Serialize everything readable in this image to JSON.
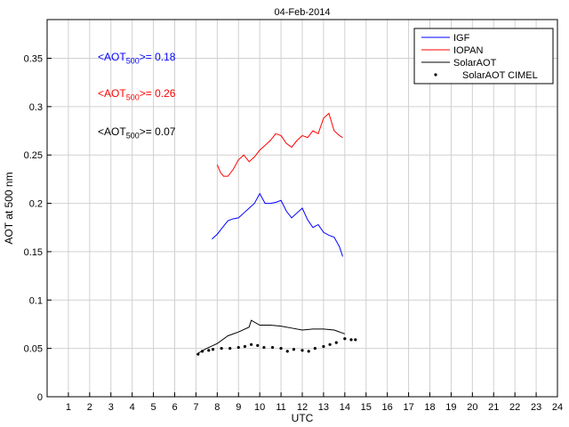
{
  "chart_data": {
    "type": "line",
    "title": "04-Feb-2014",
    "xlabel": "UTC",
    "ylabel": "AOT at 500 nm",
    "xlim": [
      0,
      24
    ],
    "ylim": [
      0,
      0.39
    ],
    "xticks": [
      1,
      2,
      3,
      4,
      5,
      6,
      7,
      8,
      9,
      10,
      11,
      12,
      13,
      14,
      15,
      16,
      17,
      18,
      19,
      20,
      21,
      22,
      23,
      24
    ],
    "yticks": [
      0,
      0.05,
      0.1,
      0.15,
      0.2,
      0.25,
      0.3,
      0.35
    ],
    "ytick_labels": [
      "0",
      "0.05",
      "0.1",
      "0.15",
      "0.2",
      "0.25",
      "0.3",
      "0.35"
    ],
    "grid": true,
    "legend_position": "top-right",
    "series": [
      {
        "name": "IGF",
        "color": "#0000ff",
        "style": "line",
        "x": [
          7.75,
          8.0,
          8.25,
          8.5,
          8.75,
          9.0,
          9.25,
          9.5,
          9.75,
          10.0,
          10.25,
          10.5,
          10.75,
          11.0,
          11.25,
          11.5,
          11.75,
          12.0,
          12.25,
          12.5,
          12.75,
          13.0,
          13.25,
          13.5,
          13.75,
          13.9
        ],
        "y": [
          0.163,
          0.168,
          0.175,
          0.182,
          0.184,
          0.185,
          0.19,
          0.195,
          0.2,
          0.21,
          0.2,
          0.2,
          0.201,
          0.203,
          0.192,
          0.185,
          0.19,
          0.195,
          0.183,
          0.175,
          0.178,
          0.17,
          0.167,
          0.165,
          0.155,
          0.145
        ]
      },
      {
        "name": "IOPAN",
        "color": "#ff0000",
        "style": "line",
        "x": [
          8.0,
          8.15,
          8.3,
          8.5,
          8.75,
          9.0,
          9.25,
          9.5,
          9.75,
          10.0,
          10.25,
          10.5,
          10.75,
          11.0,
          11.25,
          11.5,
          11.75,
          12.0,
          12.25,
          12.5,
          12.75,
          13.0,
          13.25,
          13.5,
          13.75,
          13.9
        ],
        "y": [
          0.24,
          0.232,
          0.228,
          0.228,
          0.235,
          0.245,
          0.25,
          0.243,
          0.248,
          0.255,
          0.26,
          0.265,
          0.272,
          0.27,
          0.262,
          0.258,
          0.265,
          0.27,
          0.268,
          0.275,
          0.272,
          0.288,
          0.293,
          0.275,
          0.27,
          0.268
        ]
      },
      {
        "name": "SolarAOT",
        "color": "#000000",
        "style": "line",
        "x": [
          7.1,
          7.5,
          8.0,
          8.5,
          9.0,
          9.5,
          9.6,
          10.0,
          10.5,
          11.0,
          11.5,
          12.0,
          12.5,
          13.0,
          13.5,
          14.0
        ],
        "y": [
          0.045,
          0.05,
          0.055,
          0.063,
          0.067,
          0.072,
          0.079,
          0.074,
          0.074,
          0.073,
          0.071,
          0.069,
          0.07,
          0.07,
          0.069,
          0.065
        ]
      },
      {
        "name": "SolarAOT CIMEL",
        "color": "#000000",
        "style": "dots",
        "x": [
          7.1,
          7.3,
          7.6,
          7.8,
          8.2,
          8.6,
          9.0,
          9.3,
          9.6,
          9.9,
          10.2,
          10.6,
          11.0,
          11.3,
          11.6,
          12.0,
          12.3,
          12.6,
          13.0,
          13.3,
          13.6,
          14.0,
          14.3,
          14.5
        ],
        "y": [
          0.044,
          0.047,
          0.048,
          0.049,
          0.05,
          0.05,
          0.051,
          0.052,
          0.054,
          0.053,
          0.051,
          0.051,
          0.05,
          0.047,
          0.049,
          0.048,
          0.047,
          0.05,
          0.052,
          0.054,
          0.056,
          0.06,
          0.059,
          0.059
        ]
      }
    ],
    "annotations": [
      {
        "prefix": "<AOT",
        "sub": "500",
        "suffix": ">= 0.18",
        "color": "#0000ff"
      },
      {
        "prefix": "<AOT",
        "sub": "500",
        "suffix": ">= 0.26",
        "color": "#ff0000"
      },
      {
        "prefix": "<AOT",
        "sub": "500",
        "suffix": ">= 0.07",
        "color": "#000000"
      }
    ]
  }
}
